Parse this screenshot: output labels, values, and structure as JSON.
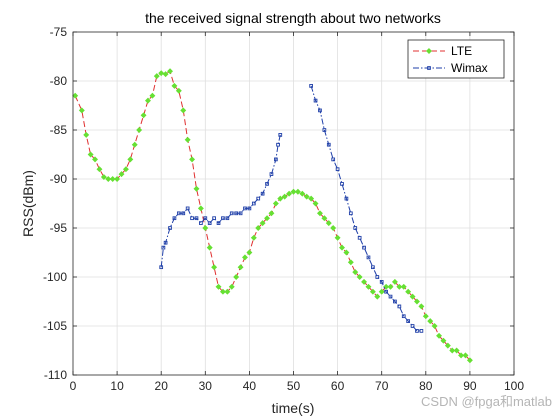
{
  "chart_data": {
    "type": "line",
    "title": "the received signal strength about two networks",
    "xlabel": "time(s)",
    "ylabel": "RSS(dBm)",
    "xlim": [
      0,
      100
    ],
    "ylim": [
      -110,
      -75
    ],
    "xticks": [
      "0",
      "10",
      "20",
      "30",
      "40",
      "50",
      "60",
      "70",
      "80",
      "90",
      "100"
    ],
    "yticks": [
      "-75",
      "-80",
      "-85",
      "-90",
      "-95",
      "-100",
      "-105",
      "-110"
    ],
    "grid": true,
    "legend_position": "top-right",
    "series": [
      {
        "name": "LTE",
        "line_color": "#e03030",
        "marker_color": "#66e033",
        "line_style": "dashed",
        "marker": "diamond",
        "points": [
          [
            0.5,
            -81.5
          ],
          [
            2,
            -83
          ],
          [
            3,
            -85.5
          ],
          [
            4,
            -87.5
          ],
          [
            5,
            -88
          ],
          [
            6,
            -89
          ],
          [
            7,
            -89.8
          ],
          [
            8,
            -90
          ],
          [
            9,
            -90
          ],
          [
            10,
            -90
          ],
          [
            11,
            -89.5
          ],
          [
            12,
            -89
          ],
          [
            13,
            -88
          ],
          [
            14,
            -86.5
          ],
          [
            15,
            -85
          ],
          [
            16,
            -83.5
          ],
          [
            17,
            -82
          ],
          [
            18,
            -81.5
          ],
          [
            19,
            -79.5
          ],
          [
            20,
            -79.2
          ],
          [
            21,
            -79.3
          ],
          [
            22,
            -79
          ],
          [
            23,
            -80.5
          ],
          [
            24,
            -81
          ],
          [
            25,
            -83
          ],
          [
            26,
            -86
          ],
          [
            27,
            -88
          ],
          [
            28,
            -91
          ],
          [
            29,
            -93
          ],
          [
            30,
            -95
          ],
          [
            31,
            -97
          ],
          [
            32,
            -99
          ],
          [
            33,
            -101
          ],
          [
            34,
            -101.5
          ],
          [
            35,
            -101.5
          ],
          [
            36,
            -101
          ],
          [
            37,
            -100
          ],
          [
            38,
            -99
          ],
          [
            39,
            -98
          ],
          [
            40,
            -97.5
          ],
          [
            41,
            -96
          ],
          [
            42,
            -95
          ],
          [
            43,
            -94.5
          ],
          [
            44,
            -94
          ],
          [
            45,
            -93.5
          ],
          [
            46,
            -92.5
          ],
          [
            47,
            -92
          ],
          [
            48,
            -91.8
          ],
          [
            49,
            -91.5
          ],
          [
            50,
            -91.3
          ],
          [
            51,
            -91.3
          ],
          [
            52,
            -91.5
          ],
          [
            53,
            -91.8
          ],
          [
            54,
            -92
          ],
          [
            55,
            -92.5
          ],
          [
            56,
            -93.5
          ],
          [
            57,
            -94
          ],
          [
            58,
            -94.5
          ],
          [
            59,
            -95
          ],
          [
            60,
            -96
          ],
          [
            61,
            -97
          ],
          [
            62,
            -97.5
          ],
          [
            63,
            -98.5
          ],
          [
            64,
            -99.5
          ],
          [
            65,
            -100
          ],
          [
            66,
            -100.5
          ],
          [
            67,
            -101
          ],
          [
            68,
            -101.5
          ],
          [
            69,
            -102
          ],
          [
            70,
            -101.5
          ],
          [
            71,
            -101
          ],
          [
            72,
            -101
          ],
          [
            73,
            -100.5
          ],
          [
            74,
            -101
          ],
          [
            75,
            -101
          ],
          [
            76,
            -101.5
          ],
          [
            77,
            -102
          ],
          [
            78,
            -102.5
          ],
          [
            79,
            -103
          ],
          [
            80,
            -104
          ],
          [
            81,
            -104.5
          ],
          [
            82,
            -105
          ],
          [
            83,
            -106
          ],
          [
            84,
            -106.5
          ],
          [
            85,
            -107
          ],
          [
            86,
            -107.5
          ],
          [
            87,
            -107.5
          ],
          [
            88,
            -108
          ],
          [
            89,
            -108
          ],
          [
            90,
            -108.5
          ]
        ]
      },
      {
        "name": "Wimax",
        "line_color": "#1f3fa8",
        "marker_color": "#1f3fa8",
        "line_style": "dashdot",
        "marker": "square",
        "points": [
          [
            20,
            -99
          ],
          [
            20.5,
            -97
          ],
          [
            21,
            -96.5
          ],
          [
            22,
            -95
          ],
          [
            23,
            -94
          ],
          [
            24,
            -93.5
          ],
          [
            25,
            -93.5
          ],
          [
            26,
            -93
          ],
          [
            27,
            -94
          ],
          [
            28,
            -94
          ],
          [
            29,
            -94.5
          ],
          [
            30,
            -94
          ],
          [
            31,
            -94.5
          ],
          [
            32,
            -94
          ],
          [
            33,
            -94.5
          ],
          [
            34,
            -94
          ],
          [
            35,
            -94
          ],
          [
            36,
            -93.5
          ],
          [
            37,
            -93.5
          ],
          [
            38,
            -93.5
          ],
          [
            39,
            -93
          ],
          [
            40,
            -93
          ],
          [
            41,
            -92.5
          ],
          [
            42,
            -92
          ],
          [
            43,
            -91.5
          ],
          [
            44,
            -90.5
          ],
          [
            45,
            -89.5
          ],
          [
            46,
            -88
          ],
          [
            46.5,
            -86.5
          ],
          [
            47,
            -85.5
          ],
          [
            54,
            -80.5
          ],
          [
            55,
            -82
          ],
          [
            56,
            -83
          ],
          [
            57,
            -85
          ],
          [
            58,
            -86.5
          ],
          [
            59,
            -88
          ],
          [
            60,
            -89
          ],
          [
            61,
            -90.5
          ],
          [
            62,
            -92
          ],
          [
            63,
            -93.5
          ],
          [
            64,
            -95
          ],
          [
            65,
            -96
          ],
          [
            66,
            -97
          ],
          [
            67,
            -98
          ],
          [
            68,
            -99
          ],
          [
            69,
            -100
          ],
          [
            70,
            -100.5
          ],
          [
            71,
            -101.5
          ],
          [
            72,
            -102
          ],
          [
            73,
            -102.5
          ],
          [
            74,
            -103
          ],
          [
            75,
            -104
          ],
          [
            76,
            -104.5
          ],
          [
            77,
            -105
          ],
          [
            78,
            -105.5
          ],
          [
            79,
            -105.5
          ]
        ]
      }
    ]
  },
  "watermark": "CSDN @fpga和matlab"
}
